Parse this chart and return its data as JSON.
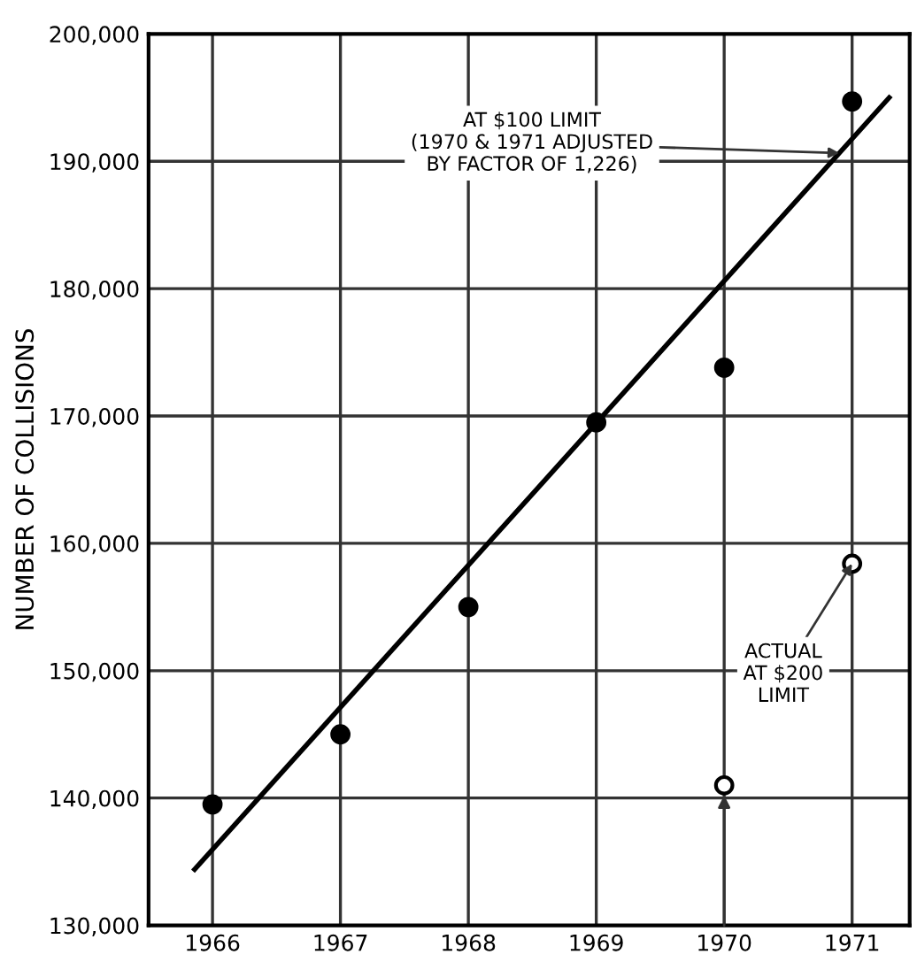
{
  "chart_data": {
    "type": "scatter",
    "ylabel": "NUMBER OF COLLISIONS",
    "xlim": [
      1965.5,
      1971.45
    ],
    "xticks": [
      1966,
      1967,
      1968,
      1969,
      1970,
      1971
    ],
    "ylim": [
      130000,
      200000
    ],
    "yticks": [
      {
        "value": 130000,
        "label": "130,000"
      },
      {
        "value": 140000,
        "label": "140,000"
      },
      {
        "value": 150000,
        "label": "150,000"
      },
      {
        "value": 160000,
        "label": "160,000"
      },
      {
        "value": 170000,
        "label": "170,000"
      },
      {
        "value": 180000,
        "label": "180,000"
      },
      {
        "value": 190000,
        "label": "190,000"
      },
      {
        "value": 200000,
        "label": "200,000"
      }
    ],
    "grid": true,
    "marker": "circle",
    "series": [
      {
        "color": "#000000",
        "x": [
          1966,
          1967,
          1968,
          1969,
          1970,
          1971
        ],
        "values": [
          139500,
          145000,
          155000,
          169500,
          173800,
          194700
        ]
      },
      {
        "type": "scatter",
        "color": "#ffffff",
        "x": [
          1970,
          1971
        ],
        "values": [
          141000,
          158400
        ]
      },
      {
        "type": "line",
        "color": "#000000",
        "marker": "none",
        "x": [
          1965.86,
          1971.29
        ],
        "values": [
          134400,
          195000
        ]
      }
    ],
    "annotations": [
      {
        "text": "AT $100 LIMIT\n(1970 & 1971 ADJUSTED\nBY FACTOR OF 1,226)",
        "x": 1970.9,
        "y": 190650
      },
      {
        "text": "ACTUAL\nAT $200\nLIMIT",
        "x": 1971,
        "y": 158400
      }
    ]
  }
}
